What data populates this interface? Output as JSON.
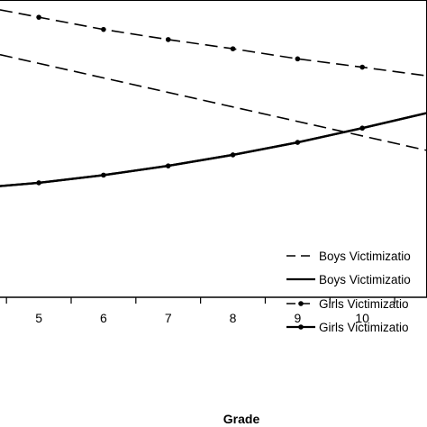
{
  "chart_data": {
    "type": "line",
    "title": "",
    "xlabel": "Grade",
    "ylabel": "",
    "categories": [
      "5",
      "6",
      "7",
      "8",
      "9",
      "10"
    ],
    "x_visible_range": [
      4.4,
      11.0
    ],
    "y_visible_range": [
      0,
      100
    ],
    "grid": false,
    "legend_position": "bottom-right",
    "series": [
      {
        "name": "Boys Victimizatio",
        "style": "dashed",
        "markers": false,
        "x": [
          4.4,
          11.0
        ],
        "values": [
          81.6,
          49.4
        ]
      },
      {
        "name": "Boys Victimizatio",
        "style": "solid",
        "markers": false,
        "x": [
          4.4,
          5,
          6,
          7,
          8,
          9,
          10,
          11.0
        ],
        "values": [
          37.4,
          38.5,
          41.1,
          44.2,
          47.9,
          52.1,
          56.9,
          62.0
        ]
      },
      {
        "name": "Girls Victimizatio",
        "style": "dashed",
        "markers": true,
        "x": [
          4.4,
          5,
          6,
          7,
          8,
          9,
          10,
          11.0
        ],
        "values": [
          96.7,
          94.2,
          90.1,
          86.7,
          83.6,
          80.2,
          77.4,
          74.5
        ]
      },
      {
        "name": "Girls Victimizatio",
        "style": "solid",
        "markers": true,
        "x": [
          4.4,
          5,
          6,
          7,
          8,
          9,
          10,
          11.0
        ],
        "values": [
          37.4,
          38.5,
          41.1,
          44.2,
          47.9,
          52.1,
          56.9,
          62.0
        ]
      }
    ]
  }
}
